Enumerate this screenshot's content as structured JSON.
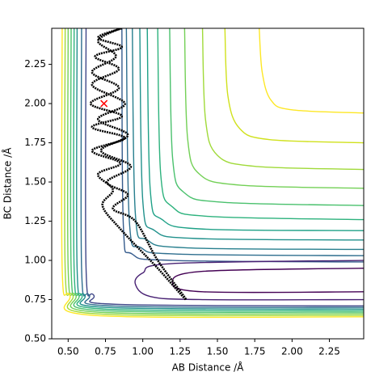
{
  "chart_data": {
    "type": "contour",
    "xlabel": "AB Distance /Å",
    "ylabel": "BC Distance /Å",
    "xlim": [
      0.39,
      2.48
    ],
    "ylim": [
      0.5,
      2.48
    ],
    "xticks": [
      {
        "value": 0.5,
        "label": "0.50"
      },
      {
        "value": 0.75,
        "label": "0.75"
      },
      {
        "value": 1.0,
        "label": "1.00"
      },
      {
        "value": 1.25,
        "label": "1.25"
      },
      {
        "value": 1.5,
        "label": "1.50"
      },
      {
        "value": 1.75,
        "label": "1.75"
      },
      {
        "value": 2.0,
        "label": "2.00"
      },
      {
        "value": 2.25,
        "label": "2.25"
      }
    ],
    "yticks": [
      {
        "value": 0.5,
        "label": "0.50"
      },
      {
        "value": 0.75,
        "label": "0.75"
      },
      {
        "value": 1.0,
        "label": "1.00"
      },
      {
        "value": 1.25,
        "label": "1.25"
      },
      {
        "value": 1.5,
        "label": "1.50"
      },
      {
        "value": 1.75,
        "label": "1.75"
      },
      {
        "value": 2.0,
        "label": "2.00"
      },
      {
        "value": 2.25,
        "label": "2.25"
      }
    ],
    "contours": [
      {
        "color": "#fde725",
        "x": [
          1.78,
          1.8,
          1.86,
          2.0,
          2.48
        ],
        "y": [
          2.48,
          2.2,
          2.02,
          1.96,
          1.94
        ]
      },
      {
        "color": "#d0e11c",
        "x": [
          1.55,
          1.57,
          1.65,
          1.85,
          2.48
        ],
        "y": [
          2.48,
          2.05,
          1.84,
          1.77,
          1.75
        ]
      },
      {
        "color": "#a0da39",
        "x": [
          1.4,
          1.42,
          1.5,
          1.75,
          2.48
        ],
        "y": [
          2.48,
          1.9,
          1.67,
          1.6,
          1.58
        ]
      },
      {
        "color": "#73d056",
        "x": [
          1.28,
          1.3,
          1.38,
          1.65,
          2.48
        ],
        "y": [
          2.48,
          1.78,
          1.55,
          1.48,
          1.46
        ]
      },
      {
        "color": "#4ac16d",
        "x": [
          1.18,
          1.2,
          1.28,
          1.55,
          2.48
        ],
        "y": [
          2.48,
          1.65,
          1.43,
          1.37,
          1.35
        ]
      },
      {
        "color": "#2db27d",
        "x": [
          1.1,
          1.12,
          1.2,
          1.45,
          2.48
        ],
        "y": [
          2.48,
          1.55,
          1.34,
          1.28,
          1.26
        ]
      },
      {
        "color": "#1fa187",
        "x": [
          1.03,
          1.05,
          1.13,
          1.4,
          2.48
        ],
        "y": [
          2.48,
          1.45,
          1.26,
          1.2,
          1.19
        ]
      },
      {
        "color": "#21918c",
        "x": [
          0.98,
          1.0,
          1.08,
          1.35,
          2.48
        ],
        "y": [
          2.48,
          1.38,
          1.19,
          1.14,
          1.13
        ]
      },
      {
        "color": "#277f8e",
        "x": [
          0.93,
          0.95,
          1.03,
          1.3,
          2.48
        ],
        "y": [
          2.48,
          1.3,
          1.13,
          1.08,
          1.07
        ]
      },
      {
        "color": "#2e6e8e",
        "x": [
          0.89,
          0.91,
          0.99,
          1.25,
          2.48
        ],
        "y": [
          2.48,
          1.25,
          1.08,
          1.04,
          1.03
        ]
      },
      {
        "color": "#365c8d",
        "x": [
          0.86,
          0.87,
          0.93,
          1.2,
          2.48
        ],
        "y": [
          2.48,
          1.22,
          1.04,
          1.0,
          0.99
        ]
      },
      {
        "color": "#482173",
        "x": [
          2.48,
          1.2,
          1.0,
          0.95,
          1.05,
          1.4,
          2.48
        ],
        "y": [
          1.0,
          0.98,
          0.92,
          0.85,
          0.77,
          0.75,
          0.75
        ]
      },
      {
        "color": "#440154",
        "x": [
          2.48,
          1.4,
          1.2,
          1.4,
          2.48
        ],
        "y": [
          0.95,
          0.93,
          0.86,
          0.8,
          0.8
        ]
      },
      {
        "color": "#3f4788",
        "x": [
          0.62,
          0.62,
          0.67,
          0.82,
          2.48
        ],
        "y": [
          2.48,
          0.95,
          0.78,
          0.72,
          0.71
        ]
      },
      {
        "color": "#2e6e8e",
        "x": [
          0.59,
          0.59,
          0.64,
          0.79,
          2.48
        ],
        "y": [
          2.48,
          0.95,
          0.78,
          0.71,
          0.7
        ]
      },
      {
        "color": "#21918c",
        "x": [
          0.56,
          0.56,
          0.61,
          0.76,
          2.48
        ],
        "y": [
          2.48,
          0.95,
          0.78,
          0.7,
          0.69
        ]
      },
      {
        "color": "#2db27d",
        "x": [
          0.54,
          0.54,
          0.59,
          0.74,
          2.48
        ],
        "y": [
          2.48,
          0.95,
          0.78,
          0.69,
          0.68
        ]
      },
      {
        "color": "#4ac16d",
        "x": [
          0.52,
          0.52,
          0.57,
          0.72,
          2.48
        ],
        "y": [
          2.48,
          0.95,
          0.78,
          0.68,
          0.67
        ]
      },
      {
        "color": "#73d056",
        "x": [
          0.5,
          0.5,
          0.55,
          0.7,
          2.48
        ],
        "y": [
          2.48,
          0.95,
          0.78,
          0.67,
          0.66
        ]
      },
      {
        "color": "#a0da39",
        "x": [
          0.48,
          0.48,
          0.53,
          0.68,
          2.48
        ],
        "y": [
          2.48,
          0.95,
          0.78,
          0.66,
          0.65
        ]
      },
      {
        "color": "#fde725",
        "x": [
          0.46,
          0.46,
          0.51,
          0.66,
          2.48
        ],
        "y": [
          2.48,
          0.95,
          0.78,
          0.65,
          0.64
        ]
      }
    ],
    "trajectory": {
      "color": "#000000",
      "x": [
        0.86,
        0.7,
        0.86,
        0.68,
        0.84,
        0.66,
        0.88,
        0.7,
        0.9,
        0.72,
        0.92,
        0.76,
        0.9,
        0.8,
        0.95,
        1.1,
        1.29,
        1.1,
        0.85,
        0.73,
        0.8,
        0.7,
        0.85,
        0.66,
        0.88,
        0.66,
        0.86,
        0.65,
        0.84,
        0.66,
        0.82,
        0.7,
        0.85
      ],
      "y": [
        2.48,
        2.42,
        2.36,
        2.3,
        2.22,
        2.12,
        2.0,
        1.9,
        1.8,
        1.7,
        1.6,
        1.5,
        1.42,
        1.33,
        1.25,
        1.0,
        0.75,
        0.95,
        1.2,
        1.35,
        1.45,
        1.55,
        1.62,
        1.7,
        1.78,
        1.85,
        1.92,
        2.0,
        2.1,
        2.2,
        2.3,
        2.4,
        2.48
      ]
    },
    "start": {
      "x": 0.74,
      "y": 2.0,
      "color": "#ff0000"
    }
  }
}
